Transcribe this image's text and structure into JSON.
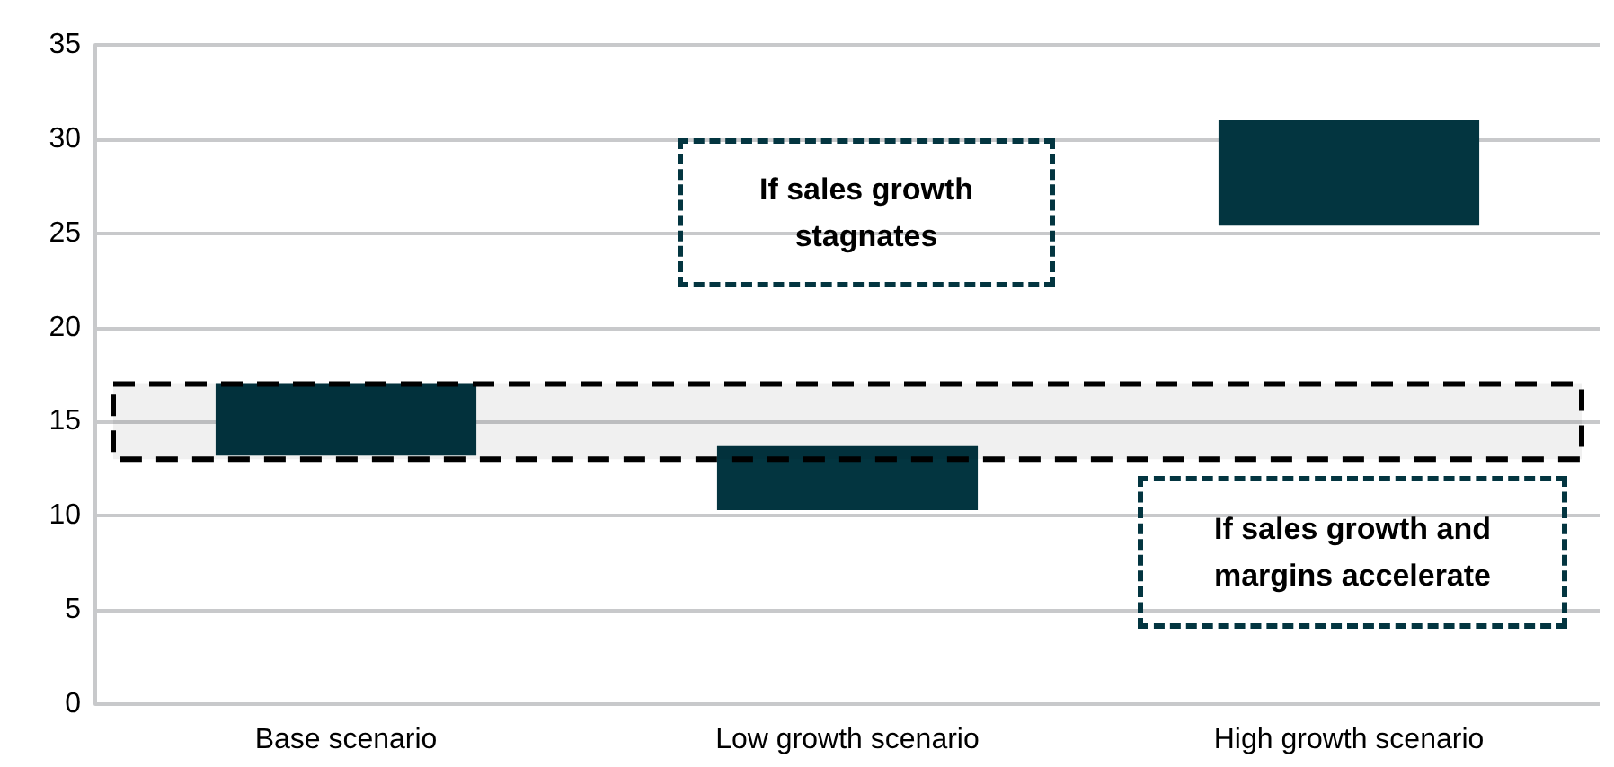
{
  "chart_data": {
    "type": "bar",
    "categories": [
      "Base scenario",
      "Low growth scenario",
      "High growth scenario"
    ],
    "base": [
      13.2,
      10.3,
      25.4
    ],
    "values": [
      3.8,
      3.4,
      5.6
    ],
    "color": "#033540",
    "ylim": [
      0,
      35
    ],
    "yticks": [
      0,
      5,
      10,
      15,
      20,
      25,
      30,
      35
    ],
    "grid": "y",
    "bands": [
      {
        "axis": "y",
        "from": 13,
        "to": 17,
        "color": "#000000"
      }
    ],
    "annotations": [
      "If sales growth stagnates",
      "If sales growth and margins accelerate"
    ]
  }
}
